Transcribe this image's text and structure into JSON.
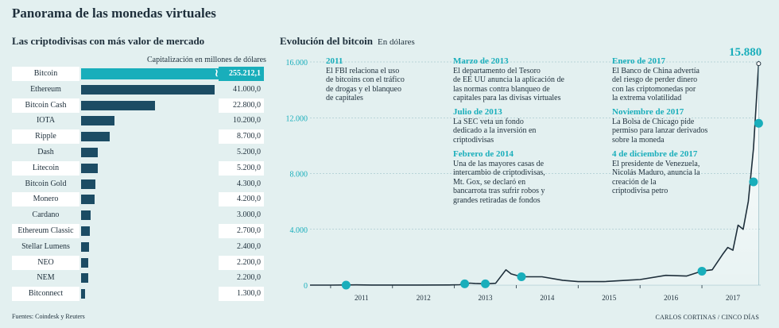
{
  "title": "Panorama de las monedas virtuales",
  "left": {
    "subtitle": "Las criptodivisas con más valor de mercado",
    "caption": "Capitalización en millones de dólares"
  },
  "right": {
    "subtitle": "Evolución del bitcoin",
    "unit": "En dólares",
    "peak_label": "15.880"
  },
  "source": "Fuentes: Coindesk y Reuters",
  "credit": "CARLOS CORTINAS / CINCO DÍAS",
  "colors": {
    "accent": "#19aebb",
    "dark": "#1c4c64",
    "background": "#e3f0f0"
  },
  "annotations": [
    {
      "title": "2011",
      "text": [
        "El FBI relaciona el uso",
        "de bitcoins con el tráfico",
        "de drogas y el blanqueo",
        "de capitales"
      ]
    },
    {
      "title": "Marzo de 2013",
      "text": [
        "El departamento del Tesoro",
        "de EE UU anuncia la aplicación de",
        "las normas contra blanqueo de",
        "capitales para las divisas virtuales"
      ]
    },
    {
      "title": "Julio de 2013",
      "text": [
        "La SEC veta un fondo",
        "dedicado a la inversión en",
        "criptodivisas"
      ]
    },
    {
      "title": "Febrero de 2014",
      "text": [
        "Una de las mayores casas de",
        "intercambio de criptodivisas,",
        "Mt. Gox, se declaró en",
        "bancarrota tras sufrir robos y",
        "grandes retiradas de fondos"
      ]
    },
    {
      "title": "Enero de 2017",
      "text": [
        "El Banco de China advertía",
        "del riesgo de perder dinero",
        "con las criptomonedas por",
        "la extrema volatilidad"
      ]
    },
    {
      "title": "Noviembre de 2017",
      "text": [
        "La Bolsa de Chicago pide",
        "permiso para lanzar derivados",
        "sobre la moneda"
      ]
    },
    {
      "title": "4 de diciembre de 2017",
      "text": [
        "El presidente de Venezuela,",
        "Nicolás Maduro, anuncia la",
        "creación de la",
        "criptodivisa petro"
      ]
    }
  ],
  "chart_data": [
    {
      "type": "bar",
      "title": "Las criptodivisas con más valor de mercado",
      "ylabel": "Capitalización en millones de dólares",
      "categories": [
        "Bitcoin",
        "Ethereum",
        "Bitcoin Cash",
        "IOTA",
        "Ripple",
        "Dash",
        "Litecoin",
        "Bitcoin Gold",
        "Monero",
        "Cardano",
        "Ethereum Classic",
        "Stellar Lumens",
        "NEO",
        "NEM",
        "Bitconnect"
      ],
      "values": [
        255212.1,
        41000,
        22800,
        10200,
        8700,
        5200,
        5200,
        4300,
        4200,
        3000,
        2700,
        2400,
        2200,
        2200,
        1300
      ],
      "value_labels": [
        "255.212,1",
        "41.000,0",
        "22.800,0",
        "10.200,0",
        "8.700,0",
        "5.200,0",
        "5.200,0",
        "4.300,0",
        "4.200,0",
        "3.000,0",
        "2.700,0",
        "2.400,0",
        "2.200,0",
        "2.200,0",
        "1.300,0"
      ],
      "axis_break": "Bitcoin"
    },
    {
      "type": "line",
      "title": "Evolución del bitcoin",
      "ylabel": "En dólares",
      "ylim": [
        0,
        16000
      ],
      "y_ticks": [
        0,
        4000,
        8000,
        12000,
        16000
      ],
      "y_tick_labels": [
        "0",
        "4.000",
        "8.000",
        "12.000",
        "16.000"
      ],
      "x_ticks": [
        "2011",
        "2012",
        "2013",
        "2014",
        "2015",
        "2016",
        "2017"
      ],
      "grid": true,
      "series": [
        {
          "x": [
            "2010-09",
            "2011-01",
            "2011-06",
            "2011-09",
            "2012-01",
            "2012-06",
            "2012-12",
            "2013-02",
            "2013-03",
            "2013-04",
            "2013-05",
            "2013-07",
            "2013-09",
            "2013-11",
            "2013-12",
            "2014-02",
            "2014-06",
            "2014-10",
            "2015-01",
            "2015-06",
            "2015-11",
            "2016-01",
            "2016-06",
            "2016-10",
            "2017-01",
            "2017-03",
            "2017-05",
            "2017-06",
            "2017-07",
            "2017-08",
            "2017-09",
            "2017-10",
            "2017-11",
            "2017-12"
          ],
          "y": [
            0,
            0.3,
            15,
            5,
            6,
            6,
            13,
            30,
            90,
            140,
            120,
            90,
            130,
            1100,
            800,
            600,
            600,
            350,
            250,
            250,
            360,
            400,
            700,
            650,
            1000,
            1100,
            2200,
            2700,
            2500,
            4300,
            4000,
            6000,
            9800,
            15880
          ]
        }
      ],
      "markers": [
        {
          "x": "2011-04",
          "y": 1
        },
        {
          "x": "2013-03",
          "y": 90
        },
        {
          "x": "2013-07",
          "y": 90
        },
        {
          "x": "2014-02",
          "y": 600
        },
        {
          "x": "2017-01",
          "y": 1000
        },
        {
          "x": "2017-11",
          "y": 7400
        },
        {
          "x": "2017-12",
          "y": 11600
        }
      ]
    }
  ]
}
